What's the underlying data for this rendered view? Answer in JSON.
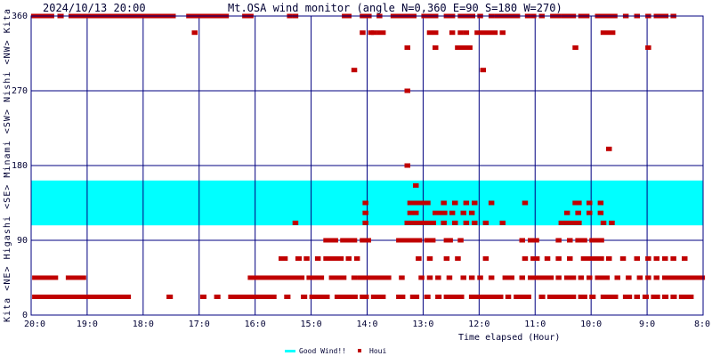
{
  "chart_data": {
    "type": "scatter",
    "timestamp": "2024/10/13 20:00",
    "title": "Mt.OSA wind monitor (angle N=0,360 E=90 S=180 W=270)",
    "xlabel": "Time elapsed (Hour)",
    "ylabel": "Kita  <NE>  Higashi  <SE>  Minami  <SW>  Nishi  <NW>  Kita",
    "x_ticks": [
      "20:0",
      "19:0",
      "18:0",
      "17:0",
      "16:0",
      "15:0",
      "14:0",
      "13:0",
      "12:0",
      "11:0",
      "10:0",
      "9:0",
      "8:0"
    ],
    "y_ticks": [
      "0",
      "90",
      "180",
      "270",
      "360"
    ],
    "xlim_hours_elapsed": [
      0,
      12
    ],
    "ylim": [
      0,
      360
    ],
    "grid": true,
    "legend_position": "bottom-center",
    "good_wind_band": {
      "name": "Good Wind!!",
      "range": [
        108,
        162
      ],
      "color": "#00ffff"
    },
    "series": [
      {
        "name": "Houi",
        "color": "#c00000",
        "runs": [
          [
            0.03,
            0.3,
            360
          ],
          [
            0.35,
            0.38,
            360
          ],
          [
            0.5,
            0.55,
            360
          ],
          [
            0.7,
            0.75,
            360
          ],
          [
            0.8,
            1.05,
            360
          ],
          [
            1.05,
            2.55,
            360
          ],
          [
            2.8,
            3.5,
            360
          ],
          [
            3.8,
            3.84,
            360
          ],
          [
            3.9,
            3.94,
            360
          ],
          [
            4.6,
            4.64,
            360
          ],
          [
            4.7,
            4.74,
            360
          ],
          [
            5.58,
            5.62,
            360
          ],
          [
            5.65,
            5.69,
            360
          ],
          [
            5.9,
            5.94,
            360
          ],
          [
            6.0,
            6.05,
            360
          ],
          [
            6.2,
            6.24,
            360
          ],
          [
            6.45,
            6.85,
            360
          ],
          [
            7.0,
            7.05,
            360
          ],
          [
            7.1,
            7.14,
            360
          ],
          [
            7.2,
            7.24,
            360
          ],
          [
            7.4,
            7.44,
            360
          ],
          [
            7.5,
            7.54,
            360
          ],
          [
            7.65,
            7.9,
            360
          ],
          [
            8.0,
            8.04,
            360
          ],
          [
            8.2,
            8.24,
            360
          ],
          [
            8.3,
            8.7,
            360
          ],
          [
            8.85,
            8.89,
            360
          ],
          [
            8.95,
            8.99,
            360
          ],
          [
            9.1,
            9.14,
            360
          ],
          [
            9.3,
            9.35,
            360
          ],
          [
            9.4,
            9.44,
            360
          ],
          [
            9.5,
            9.7,
            360
          ],
          [
            9.8,
            9.84,
            360
          ],
          [
            9.9,
            9.94,
            360
          ],
          [
            10.1,
            10.14,
            360
          ],
          [
            10.2,
            10.24,
            360
          ],
          [
            10.3,
            10.34,
            360
          ],
          [
            10.4,
            10.44,
            360
          ],
          [
            10.6,
            10.64,
            360
          ],
          [
            10.8,
            10.84,
            360
          ],
          [
            11.0,
            11.04,
            360
          ],
          [
            11.15,
            11.19,
            360
          ],
          [
            11.25,
            11.35,
            360
          ],
          [
            11.45,
            11.49,
            360
          ],
          [
            2.9,
            2.94,
            340
          ],
          [
            5.9,
            5.94,
            340
          ],
          [
            6.05,
            6.09,
            340
          ],
          [
            6.1,
            6.14,
            340
          ],
          [
            6.2,
            6.3,
            340
          ],
          [
            7.1,
            7.14,
            340
          ],
          [
            7.2,
            7.24,
            340
          ],
          [
            7.5,
            7.54,
            340
          ],
          [
            7.65,
            7.69,
            340
          ],
          [
            7.75,
            7.79,
            340
          ],
          [
            7.95,
            7.99,
            340
          ],
          [
            8.05,
            8.3,
            340
          ],
          [
            8.4,
            8.44,
            340
          ],
          [
            10.2,
            10.4,
            340
          ],
          [
            6.7,
            6.74,
            322
          ],
          [
            7.2,
            7.24,
            322
          ],
          [
            7.6,
            7.85,
            322
          ],
          [
            9.7,
            9.74,
            322
          ],
          [
            11.0,
            11.04,
            322
          ],
          [
            5.75,
            5.79,
            295
          ],
          [
            8.05,
            8.09,
            295
          ],
          [
            6.7,
            6.74,
            270
          ],
          [
            10.3,
            10.34,
            200
          ],
          [
            6.7,
            6.74,
            180
          ],
          [
            6.85,
            6.89,
            156
          ],
          [
            6.75,
            7.1,
            135
          ],
          [
            7.35,
            7.39,
            135
          ],
          [
            7.55,
            7.59,
            135
          ],
          [
            7.75,
            7.79,
            135
          ],
          [
            7.9,
            7.94,
            135
          ],
          [
            8.2,
            8.24,
            135
          ],
          [
            8.8,
            8.84,
            135
          ],
          [
            9.7,
            9.8,
            135
          ],
          [
            9.95,
            9.99,
            135
          ],
          [
            10.15,
            10.19,
            135
          ],
          [
            5.95,
            5.99,
            135
          ],
          [
            6.75,
            6.79,
            123
          ],
          [
            6.85,
            6.89,
            123
          ],
          [
            7.2,
            7.4,
            123
          ],
          [
            7.5,
            7.54,
            123
          ],
          [
            7.7,
            7.74,
            123
          ],
          [
            7.85,
            7.89,
            123
          ],
          [
            9.55,
            9.59,
            123
          ],
          [
            9.75,
            9.79,
            123
          ],
          [
            9.95,
            9.99,
            123
          ],
          [
            10.15,
            10.19,
            123
          ],
          [
            5.95,
            5.99,
            123
          ],
          [
            4.7,
            4.74,
            111
          ],
          [
            5.95,
            5.99,
            111
          ],
          [
            6.7,
            6.74,
            111
          ],
          [
            6.8,
            7.2,
            111
          ],
          [
            7.35,
            7.39,
            111
          ],
          [
            7.55,
            7.59,
            111
          ],
          [
            7.75,
            7.79,
            111
          ],
          [
            7.9,
            7.94,
            111
          ],
          [
            8.1,
            8.14,
            111
          ],
          [
            8.4,
            8.44,
            111
          ],
          [
            9.45,
            9.49,
            111
          ],
          [
            9.55,
            9.8,
            111
          ],
          [
            10.2,
            10.24,
            111
          ],
          [
            10.35,
            10.39,
            111
          ],
          [
            5.25,
            5.45,
            90
          ],
          [
            5.55,
            5.59,
            90
          ],
          [
            5.65,
            5.69,
            90
          ],
          [
            5.75,
            5.79,
            90
          ],
          [
            5.9,
            5.94,
            90
          ],
          [
            6.0,
            6.04,
            90
          ],
          [
            6.55,
            6.6,
            90
          ],
          [
            6.65,
            6.95,
            90
          ],
          [
            7.05,
            7.09,
            90
          ],
          [
            7.15,
            7.19,
            90
          ],
          [
            7.4,
            7.5,
            90
          ],
          [
            7.65,
            7.69,
            90
          ],
          [
            8.75,
            8.79,
            90
          ],
          [
            8.9,
            8.94,
            90
          ],
          [
            9.0,
            9.04,
            90
          ],
          [
            9.4,
            9.44,
            90
          ],
          [
            9.6,
            9.64,
            90
          ],
          [
            9.75,
            9.9,
            90
          ],
          [
            10.0,
            10.2,
            90
          ],
          [
            4.45,
            4.55,
            68
          ],
          [
            4.75,
            4.8,
            68
          ],
          [
            4.9,
            4.94,
            68
          ],
          [
            5.1,
            5.14,
            68
          ],
          [
            5.25,
            5.55,
            68
          ],
          [
            5.65,
            5.69,
            68
          ],
          [
            5.8,
            5.84,
            68
          ],
          [
            6.9,
            6.94,
            68
          ],
          [
            7.1,
            7.14,
            68
          ],
          [
            7.4,
            7.44,
            68
          ],
          [
            7.6,
            7.64,
            68
          ],
          [
            8.1,
            8.14,
            68
          ],
          [
            8.8,
            8.84,
            68
          ],
          [
            8.95,
            9.05,
            68
          ],
          [
            9.2,
            9.24,
            68
          ],
          [
            9.4,
            9.44,
            68
          ],
          [
            9.6,
            9.64,
            68
          ],
          [
            9.85,
            10.2,
            68
          ],
          [
            10.3,
            10.34,
            68
          ],
          [
            10.55,
            10.59,
            68
          ],
          [
            10.8,
            10.84,
            68
          ],
          [
            11.0,
            11.04,
            68
          ],
          [
            11.15,
            11.19,
            68
          ],
          [
            11.3,
            11.34,
            68
          ],
          [
            11.45,
            11.49,
            68
          ],
          [
            11.65,
            11.69,
            68
          ],
          [
            0.05,
            0.45,
            45
          ],
          [
            0.65,
            0.95,
            45
          ],
          [
            3.9,
            4.0,
            45
          ],
          [
            4.05,
            4.85,
            45
          ],
          [
            4.95,
            5.2,
            45
          ],
          [
            5.35,
            5.6,
            45
          ],
          [
            5.75,
            5.79,
            45
          ],
          [
            5.85,
            5.95,
            45
          ],
          [
            6.0,
            6.04,
            45
          ],
          [
            6.1,
            6.3,
            45
          ],
          [
            6.35,
            6.4,
            45
          ],
          [
            6.6,
            6.64,
            45
          ],
          [
            6.95,
            6.99,
            45
          ],
          [
            7.1,
            7.14,
            45
          ],
          [
            7.25,
            7.29,
            45
          ],
          [
            7.45,
            7.49,
            45
          ],
          [
            7.7,
            7.74,
            45
          ],
          [
            7.85,
            7.89,
            45
          ],
          [
            8.0,
            8.04,
            45
          ],
          [
            8.2,
            8.24,
            45
          ],
          [
            8.45,
            8.6,
            45
          ],
          [
            8.75,
            8.79,
            45
          ],
          [
            8.9,
            9.3,
            45
          ],
          [
            9.4,
            9.44,
            45
          ],
          [
            9.55,
            9.7,
            45
          ],
          [
            9.8,
            9.84,
            45
          ],
          [
            9.95,
            9.99,
            45
          ],
          [
            10.1,
            10.3,
            45
          ],
          [
            10.45,
            10.49,
            45
          ],
          [
            10.65,
            10.69,
            45
          ],
          [
            10.85,
            10.89,
            45
          ],
          [
            11.0,
            11.04,
            45
          ],
          [
            11.15,
            11.19,
            45
          ],
          [
            11.3,
            11.34,
            45
          ],
          [
            11.4,
            12.0,
            45
          ],
          [
            0.05,
            1.75,
            22
          ],
          [
            2.45,
            2.5,
            22
          ],
          [
            3.05,
            3.1,
            22
          ],
          [
            3.3,
            3.35,
            22
          ],
          [
            3.55,
            4.35,
            22
          ],
          [
            4.55,
            4.6,
            22
          ],
          [
            4.85,
            4.9,
            22
          ],
          [
            5.0,
            5.3,
            22
          ],
          [
            5.45,
            5.5,
            22
          ],
          [
            5.55,
            5.8,
            22
          ],
          [
            5.9,
            6.0,
            22
          ],
          [
            6.1,
            6.3,
            22
          ],
          [
            6.55,
            6.65,
            22
          ],
          [
            6.8,
            6.9,
            22
          ],
          [
            7.05,
            7.1,
            22
          ],
          [
            7.25,
            7.3,
            22
          ],
          [
            7.4,
            7.7,
            22
          ],
          [
            7.85,
            8.4,
            22
          ],
          [
            8.5,
            8.54,
            22
          ],
          [
            8.65,
            8.9,
            22
          ],
          [
            9.1,
            9.15,
            22
          ],
          [
            9.25,
            9.7,
            22
          ],
          [
            9.8,
            9.9,
            22
          ],
          [
            10.0,
            10.05,
            22
          ],
          [
            10.2,
            10.45,
            22
          ],
          [
            10.6,
            10.7,
            22
          ],
          [
            10.8,
            10.84,
            22
          ],
          [
            10.95,
            11.0,
            22
          ],
          [
            11.1,
            11.2,
            22
          ],
          [
            11.3,
            11.35,
            22
          ],
          [
            11.45,
            11.5,
            22
          ],
          [
            11.6,
            11.65,
            22
          ],
          [
            11.7,
            11.8,
            22
          ]
        ]
      }
    ]
  }
}
